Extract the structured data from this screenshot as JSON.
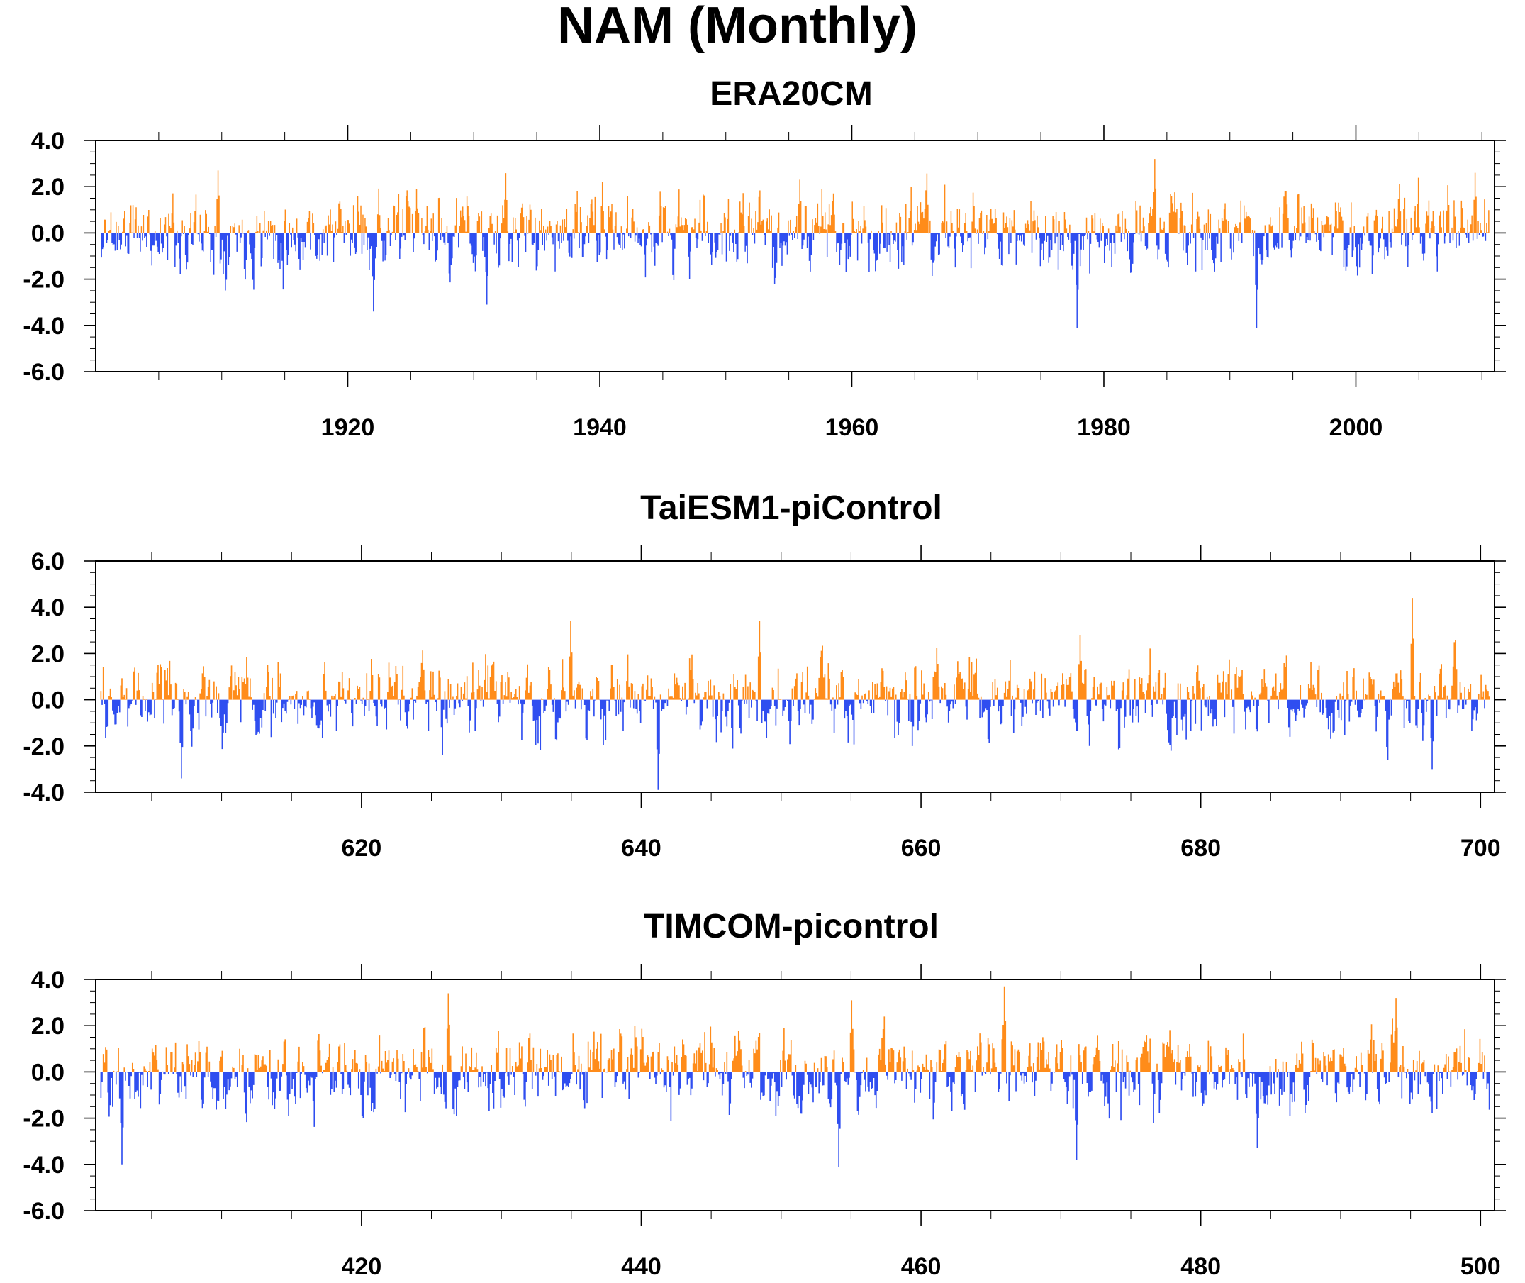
{
  "title": "NAM (Monthly)",
  "colors": {
    "positive": "#ff8c1a",
    "negative": "#2f4ef0",
    "axis": "#000000"
  },
  "chart_data": [
    {
      "type": "bar",
      "title": "ERA20CM",
      "xlabel": "",
      "ylabel": "",
      "x_range": [
        1900,
        2011
      ],
      "ylim": [
        -6.0,
        4.0
      ],
      "xticks": [
        1920,
        1940,
        1960,
        1980,
        2000
      ],
      "xtick_labels": [
        "1920",
        "1940",
        "1960",
        "1980",
        "2000"
      ],
      "yticks": [
        4.0,
        2.0,
        0.0,
        -2.0,
        -4.0,
        -6.0
      ],
      "ytick_labels": [
        "4.0",
        "2.0",
        "0.0",
        "-2.0",
        "-4.0",
        "-6.0"
      ],
      "grid": false,
      "series_note": "monthly index, orange above zero, blue below zero",
      "peaks": [
        {
          "x": 1909.7,
          "y": 2.7
        },
        {
          "x": 1922.0,
          "y": -3.4
        },
        {
          "x": 1931.0,
          "y": -3.1
        },
        {
          "x": 1955.8,
          "y": 2.3
        },
        {
          "x": 1977.8,
          "y": -4.1
        },
        {
          "x": 1984.0,
          "y": 3.2
        },
        {
          "x": 1992.1,
          "y": -4.1
        },
        {
          "x": 2009.4,
          "y": 2.6
        }
      ]
    },
    {
      "type": "bar",
      "title": "TaiESM1-piControl",
      "xlabel": "",
      "ylabel": "",
      "x_range": [
        601,
        701
      ],
      "ylim": [
        -4.0,
        6.0
      ],
      "xticks": [
        620,
        640,
        660,
        680,
        700
      ],
      "xtick_labels": [
        "620",
        "640",
        "660",
        "680",
        "700"
      ],
      "yticks": [
        6.0,
        4.0,
        2.0,
        0.0,
        -2.0,
        -4.0
      ],
      "ytick_labels": [
        "6.0",
        "4.0",
        "2.0",
        "0.0",
        "-2.0",
        "-4.0"
      ],
      "grid": false,
      "series_note": "monthly index, orange above zero, blue below zero",
      "peaks": [
        {
          "x": 607.1,
          "y": -3.4
        },
        {
          "x": 634.9,
          "y": 3.4
        },
        {
          "x": 641.2,
          "y": -3.9
        },
        {
          "x": 648.4,
          "y": 3.4
        },
        {
          "x": 671.3,
          "y": 2.8
        },
        {
          "x": 695.1,
          "y": 4.4
        },
        {
          "x": 696.5,
          "y": -3.0
        }
      ]
    },
    {
      "type": "bar",
      "title": "TIMCOM-picontrol",
      "xlabel": "",
      "ylabel": "",
      "x_range": [
        401,
        501
      ],
      "ylim": [
        -6.0,
        4.0
      ],
      "xticks": [
        420,
        440,
        460,
        480,
        500
      ],
      "xtick_labels": [
        "420",
        "440",
        "460",
        "480",
        "500"
      ],
      "yticks": [
        4.0,
        2.0,
        0.0,
        -2.0,
        -4.0,
        -6.0
      ],
      "ytick_labels": [
        "4.0",
        "2.0",
        "0.0",
        "-2.0",
        "-4.0",
        "-6.0"
      ],
      "grid": false,
      "series_note": "monthly index, orange above zero, blue below zero",
      "peaks": [
        {
          "x": 402.8,
          "y": -4.0
        },
        {
          "x": 426.2,
          "y": 3.4
        },
        {
          "x": 454.1,
          "y": -4.1
        },
        {
          "x": 455.0,
          "y": 3.1
        },
        {
          "x": 465.9,
          "y": 3.7
        },
        {
          "x": 471.1,
          "y": -3.8
        },
        {
          "x": 484.0,
          "y": -3.3
        },
        {
          "x": 493.9,
          "y": 3.2
        }
      ]
    }
  ]
}
